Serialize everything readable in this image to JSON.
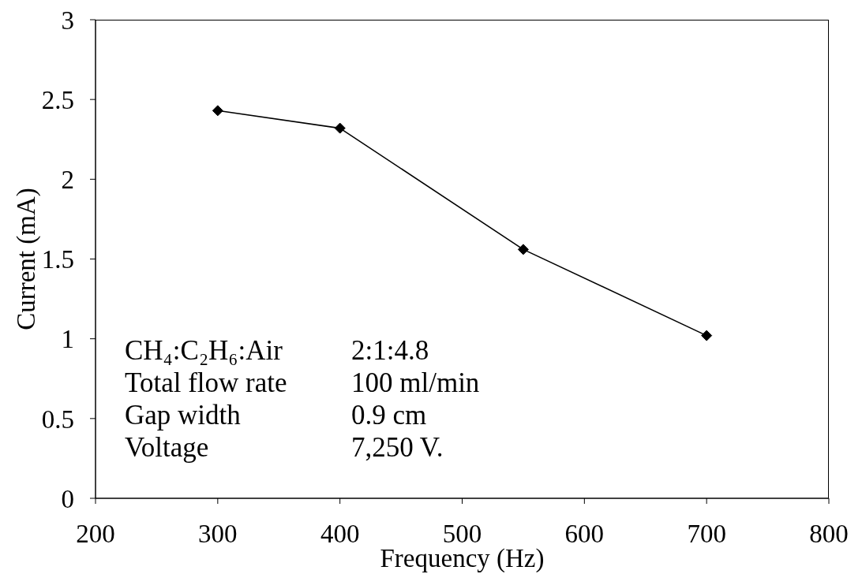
{
  "chart_data": {
    "type": "line",
    "xlabel": "Frequency (Hz)",
    "ylabel": "Current (mA)",
    "x": [
      300,
      400,
      550,
      700
    ],
    "series": [
      {
        "color": "#000000",
        "values": [
          2.43,
          2.32,
          1.56,
          1.02
        ]
      }
    ],
    "xlim": [
      200,
      800
    ],
    "ylim": [
      0,
      3
    ],
    "xticks": [
      200,
      300,
      400,
      500,
      600,
      700,
      800
    ],
    "yticks": [
      0,
      0.5,
      1,
      1.5,
      2,
      2.5,
      3
    ],
    "grid": false,
    "marker": "diamond",
    "line_style": "solid",
    "annotations": [
      "CH₄:C₂H₆:Air",
      "2:1:4.8",
      "Total flow rate",
      "100 ml/min",
      "Gap width",
      "0.9 cm",
      "Voltage",
      "7,250 V."
    ]
  }
}
